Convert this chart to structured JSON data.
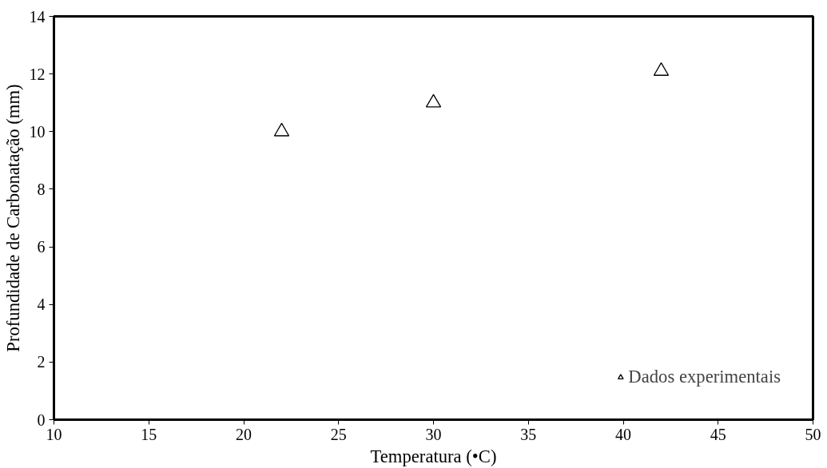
{
  "chart_data": {
    "type": "scatter",
    "xlabel": "Temperatura (•C)",
    "ylabel": "Profundidade de Carbonatação (mm)",
    "x": [
      22,
      30,
      42
    ],
    "series": [
      {
        "name": "Dados experimentais",
        "color": "#000000",
        "values": [
          10,
          11,
          12.1
        ]
      }
    ],
    "xlim": [
      10,
      50
    ],
    "ylim": [
      0,
      14
    ],
    "xticks": [
      10,
      15,
      20,
      25,
      30,
      35,
      40,
      45,
      50
    ],
    "yticks": [
      0,
      2,
      4,
      6,
      8,
      10,
      12,
      14
    ],
    "marker": "triangle",
    "grid": false,
    "legend": "bottom right"
  }
}
